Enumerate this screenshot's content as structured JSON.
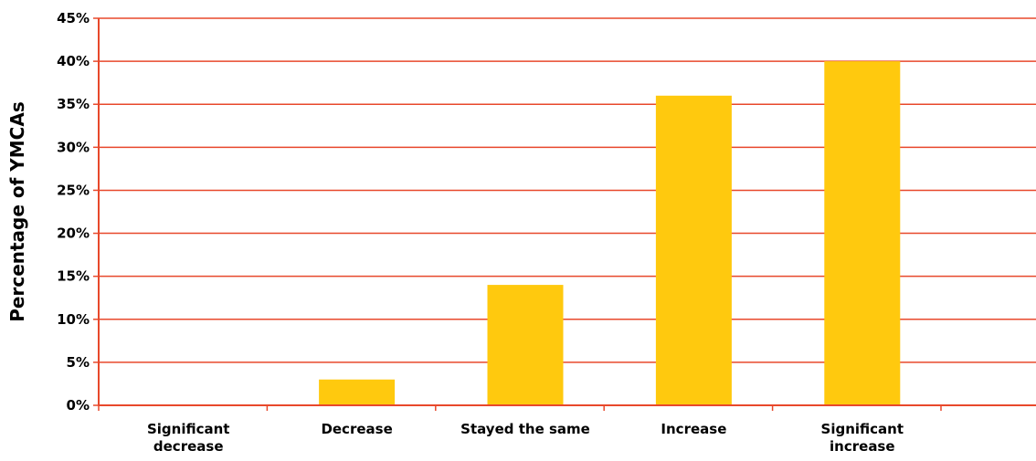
{
  "chart_data": {
    "type": "bar",
    "title": "",
    "xlabel": "",
    "ylabel": "Percentage of YMCAs",
    "categories": [
      [
        "Significant",
        "decrease"
      ],
      [
        "Decrease"
      ],
      [
        "Stayed the same"
      ],
      [
        "Increase"
      ],
      [
        "Significant",
        "increase"
      ]
    ],
    "values": [
      0,
      3,
      14,
      36,
      40
    ],
    "ylim": [
      0,
      45
    ],
    "yticks": [
      0,
      5,
      10,
      15,
      20,
      25,
      30,
      35,
      40,
      45
    ],
    "ytick_labels": [
      "0%",
      "5%",
      "10%",
      "15%",
      "20%",
      "25%",
      "30%",
      "35%",
      "40%",
      "45%"
    ],
    "grid": true,
    "legend": "none",
    "colors": {
      "bar": "#FFC90E",
      "grid": "#E8482B",
      "axis": "#E8482B",
      "text": "#000000"
    }
  }
}
